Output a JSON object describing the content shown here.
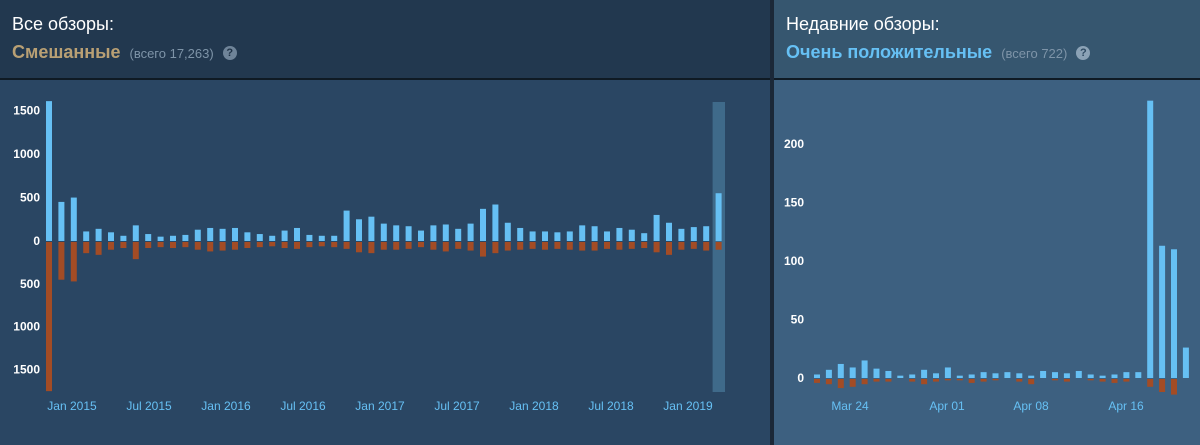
{
  "all_reviews": {
    "title": "Все обзоры:",
    "summary": "Смешанные",
    "count_text": "(всего 17,263)",
    "help_icon": "?"
  },
  "recent_reviews": {
    "title": "Недавние обзоры:",
    "summary": "Очень положительные",
    "count_text": "(всего 722)",
    "help_icon": "?"
  },
  "colors": {
    "positive": "#66c0f4",
    "negative": "#a34c25",
    "summary_mixed": "#b9a074",
    "summary_positive": "#66c0f4"
  },
  "chart_data": [
    {
      "type": "bar",
      "name": "all-reviews-histogram",
      "x_tick_labels": [
        "Jan 2015",
        "Jul 2015",
        "Jan 2016",
        "Jul 2016",
        "Jan 2017",
        "Jul 2017",
        "Jan 2018",
        "Jul 2018",
        "Jan 2019"
      ],
      "y_tick_labels": [
        "1500",
        "1000",
        "500",
        "0",
        "500",
        "1000",
        "1500"
      ],
      "ylim_positive": [
        0,
        1600
      ],
      "ylim_negative": [
        0,
        1750
      ],
      "series": [
        {
          "name": "positive",
          "values": [
            1610,
            450,
            500,
            110,
            140,
            100,
            60,
            180,
            80,
            50,
            60,
            70,
            130,
            150,
            140,
            150,
            100,
            80,
            60,
            120,
            150,
            70,
            60,
            60,
            350,
            250,
            280,
            200,
            180,
            170,
            120,
            180,
            190,
            140,
            200,
            370,
            420,
            210,
            150,
            110,
            110,
            100,
            110,
            180,
            170,
            110,
            150,
            130,
            90,
            300,
            210,
            140,
            160,
            170,
            550
          ]
        },
        {
          "name": "negative",
          "values": [
            1740,
            440,
            460,
            130,
            150,
            90,
            70,
            200,
            70,
            60,
            70,
            60,
            90,
            110,
            100,
            90,
            70,
            60,
            50,
            70,
            80,
            60,
            50,
            60,
            80,
            120,
            130,
            90,
            90,
            80,
            60,
            90,
            110,
            80,
            100,
            170,
            130,
            100,
            90,
            80,
            90,
            80,
            90,
            100,
            100,
            80,
            90,
            80,
            70,
            120,
            150,
            90,
            80,
            100,
            90
          ]
        }
      ],
      "highlight_last_bars": 1
    },
    {
      "type": "bar",
      "name": "recent-reviews-histogram",
      "x_tick_labels": [
        "Mar 24",
        "Apr 01",
        "Apr 08",
        "Apr 16"
      ],
      "y_tick_labels": [
        "200",
        "150",
        "100",
        "50",
        "0"
      ],
      "ylim": [
        0,
        240
      ],
      "series": [
        {
          "name": "positive",
          "values": [
            3,
            7,
            12,
            9,
            15,
            8,
            6,
            2,
            3,
            7,
            4,
            9,
            2,
            3,
            5,
            4,
            5,
            4,
            2,
            6,
            5,
            4,
            6,
            3,
            2,
            3,
            5,
            5,
            237,
            113,
            110,
            26
          ]
        },
        {
          "name": "negative",
          "values": [
            3,
            4,
            7,
            6,
            4,
            2,
            2,
            0,
            2,
            4,
            2,
            1,
            1,
            3,
            2,
            1,
            0,
            2,
            4,
            0,
            1,
            2,
            0,
            1,
            2,
            3,
            2,
            0,
            6,
            10,
            12,
            0
          ]
        }
      ]
    }
  ]
}
